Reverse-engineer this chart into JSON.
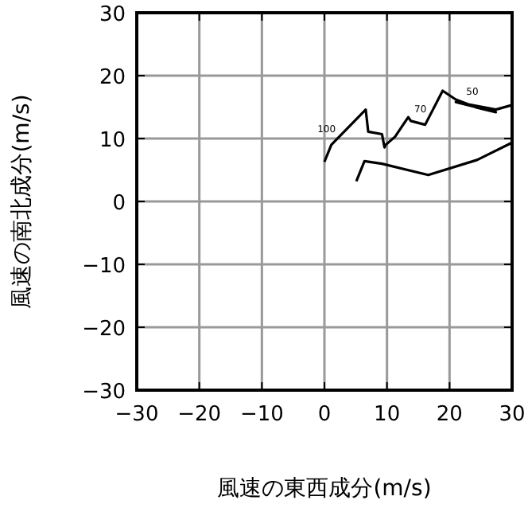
{
  "chart_data": {
    "type": "line",
    "xlabel": "風速の東西成分(m/s)",
    "ylabel": "風速の南北成分(m/s)",
    "xlim": [
      -30,
      30
    ],
    "ylim": [
      -30,
      30
    ],
    "xticks": [
      -30,
      -20,
      -10,
      0,
      10,
      20,
      30
    ],
    "yticks": [
      -30,
      -20,
      -10,
      0,
      10,
      20,
      30
    ],
    "grid": true,
    "series": [
      {
        "color": "#000000",
        "x": [
          0,
          1.1,
          6.6,
          7.0,
          9.2,
          9.6,
          9.8,
          11.3,
          13.4,
          13.8,
          16.1,
          18.9,
          21.0,
          24.4,
          27.4,
          21.0,
          27.4,
          29.9
        ],
        "values": [
          6.3,
          9.0,
          14.6,
          11.1,
          10.7,
          8.6,
          9.0,
          10.3,
          13.4,
          12.8,
          12.2,
          17.6,
          16.2,
          14.9,
          14.2,
          15.8,
          14.6,
          15.3
        ]
      },
      {
        "color": "#000000",
        "x": [
          5.1,
          6.4,
          9.2,
          16.6,
          24.4,
          29.9
        ],
        "values": [
          3.2,
          6.4,
          6.0,
          4.2,
          6.6,
          9.3
        ]
      }
    ],
    "annotations": [
      {
        "text": "100",
        "x": 1.1,
        "y": 9.0
      },
      {
        "text": "70",
        "x": 16.1,
        "y": 12.2
      },
      {
        "text": "50",
        "x": 24.4,
        "y": 14.9
      }
    ]
  }
}
